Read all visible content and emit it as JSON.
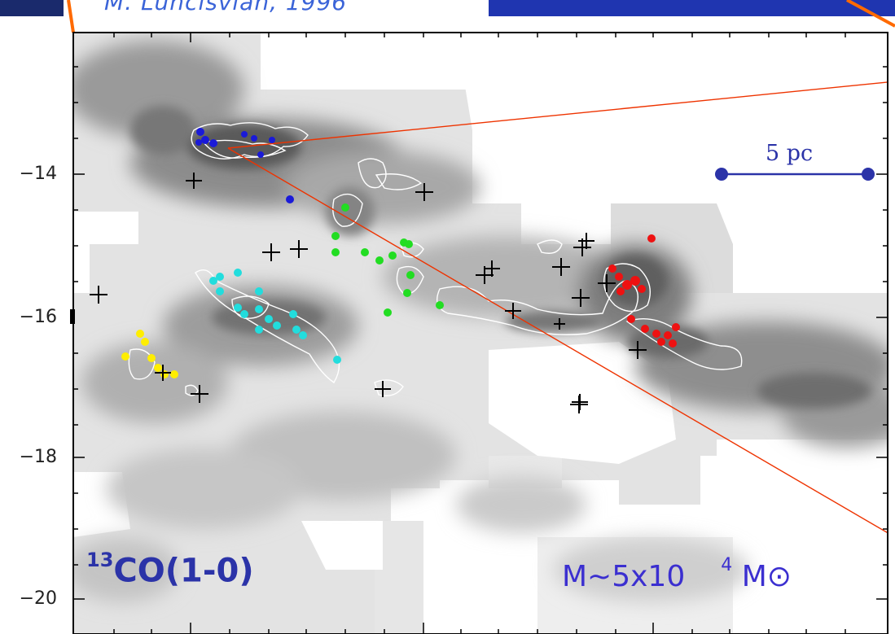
{
  "header": {
    "caption": "M. Lunclsvlan, 1996",
    "left_bar_color": "#1a2a6c",
    "right_bar_color": "#1f35b0"
  },
  "axes": {
    "y_ticks": [
      "−14",
      "−16",
      "−18",
      "−20"
    ],
    "frame_color": "#000000"
  },
  "map": {
    "kind": "grayscale 13CO emission map with white contours",
    "marker_colors": {
      "blue": "#1a1ad8",
      "green": "#22dd22",
      "cyan": "#22dddd",
      "red": "#ee1111",
      "yellow": "#ffee00",
      "cross": "#000000",
      "zoom_line": "#ee3300"
    }
  },
  "scale_bar": {
    "label": "5 pc",
    "color": "#2b33a8"
  },
  "line_label": {
    "sup": "13",
    "text": "CO(1-0)"
  },
  "mass_label": {
    "prefix": "M~5x10",
    "exponent": "4",
    "unit": "M⊙"
  }
}
